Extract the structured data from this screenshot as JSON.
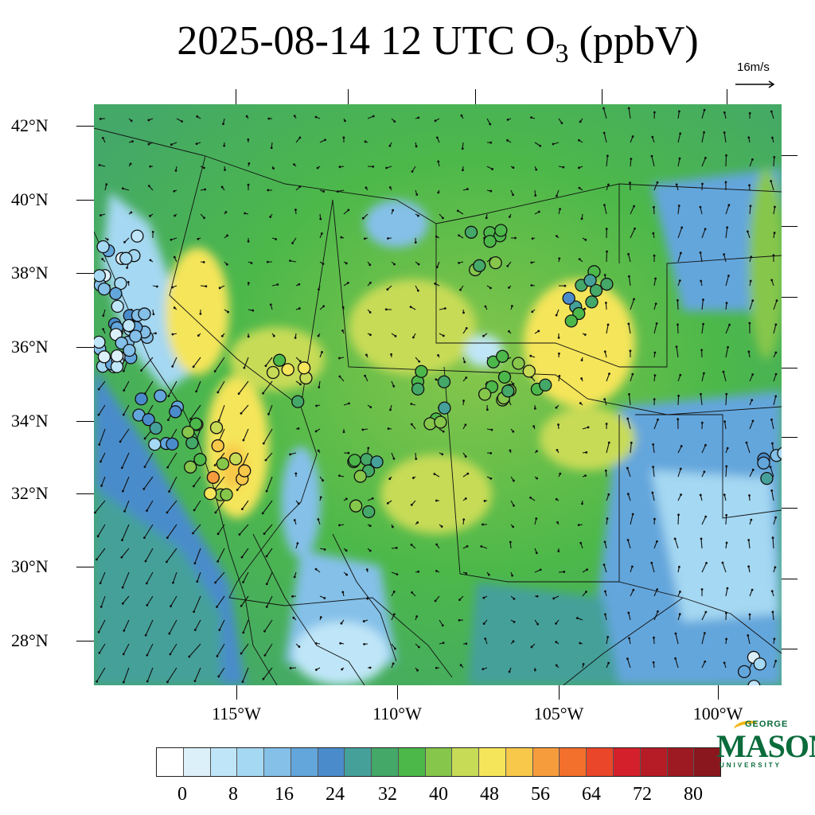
{
  "header": {
    "title_prefix": "2025-08-14 12 UTC O",
    "title_sub": "3",
    "title_suffix": " (ppbV)"
  },
  "wind_reference": {
    "label": "16m/s"
  },
  "axes": {
    "lat_labels": [
      "42°N",
      "40°N",
      "38°N",
      "36°N",
      "34°N",
      "32°N",
      "30°N",
      "28°N"
    ],
    "lon_labels": [
      "115°W",
      "110°W",
      "105°W",
      "100°W"
    ]
  },
  "colorbar": {
    "colors": [
      "#ffffff",
      "#dcf0fa",
      "#bfe6f8",
      "#a5d8f2",
      "#84c0e8",
      "#63a6dc",
      "#4a8ccb",
      "#45a09a",
      "#44a868",
      "#4cb84a",
      "#86c64b",
      "#c7db57",
      "#f5e55a",
      "#f8c84a",
      "#f79c3d",
      "#f26f2c",
      "#e9462a",
      "#d3202a",
      "#b61c26",
      "#9e1a22",
      "#8a171d"
    ],
    "labels": [
      "0",
      "8",
      "16",
      "24",
      "32",
      "40",
      "48",
      "56",
      "64",
      "72",
      "80"
    ]
  },
  "logo": {
    "top": "GEORGE",
    "main": "MASON",
    "bottom": "UNIVERSITY"
  }
}
